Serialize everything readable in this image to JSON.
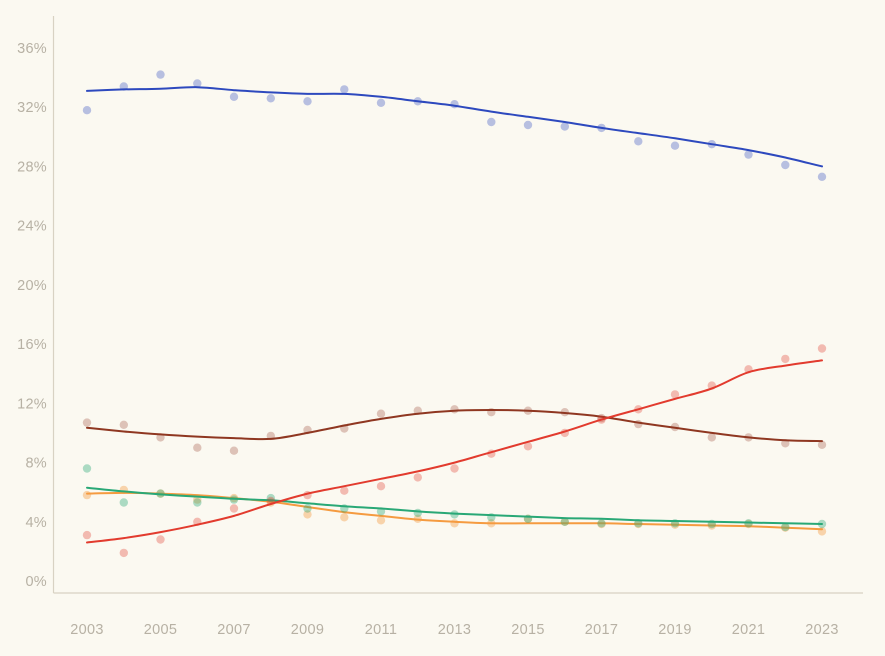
{
  "page": {
    "background_color": "#fbf9f1",
    "axis_color": "#d8d2c3",
    "tick_label_color": "#b7b1a4"
  },
  "chart_data": {
    "type": "line",
    "style": "scatter points with smoothed trend lines, one point per year",
    "title": "",
    "xlabel": "",
    "ylabel": "",
    "grid": false,
    "legend": "none",
    "x": [
      2003,
      2004,
      2005,
      2006,
      2007,
      2008,
      2009,
      2010,
      2011,
      2012,
      2013,
      2014,
      2015,
      2016,
      2017,
      2018,
      2019,
      2020,
      2021,
      2022,
      2023
    ],
    "x_tick_labels": [
      "2003",
      "2005",
      "2007",
      "2009",
      "2011",
      "2013",
      "2015",
      "2017",
      "2019",
      "2021",
      "2023"
    ],
    "y_tick_labels": [
      "0%",
      "4%",
      "8%",
      "12%",
      "16%",
      "20%",
      "24%",
      "28%",
      "32%",
      "36%"
    ],
    "y_tick_values": [
      0,
      4,
      8,
      12,
      16,
      20,
      24,
      28,
      32,
      36
    ],
    "ylim": [
      0,
      38.2
    ],
    "xlim": [
      2003,
      2023
    ],
    "series": [
      {
        "name": "dark-red",
        "line_color": "#8f3721",
        "dot_opacity": 0.28,
        "trend": [
          10.35,
          10.1,
          9.9,
          9.75,
          9.65,
          9.6,
          10.0,
          10.5,
          10.95,
          11.3,
          11.5,
          11.55,
          11.5,
          11.35,
          11.1,
          10.7,
          10.35,
          10.0,
          9.7,
          9.5,
          9.45
        ],
        "points": [
          10.7,
          10.55,
          9.7,
          9.0,
          8.8,
          9.8,
          10.2,
          10.3,
          11.3,
          11.5,
          11.6,
          11.4,
          11.5,
          11.4,
          11.0,
          10.6,
          10.4,
          9.7,
          9.7,
          9.3,
          9.2
        ]
      },
      {
        "name": "orange",
        "line_color": "#f59b40",
        "dot_opacity": 0.4,
        "trend": [
          5.9,
          5.95,
          5.9,
          5.8,
          5.6,
          5.35,
          5.0,
          4.65,
          4.4,
          4.15,
          4.0,
          3.9,
          3.9,
          3.9,
          3.9,
          3.85,
          3.8,
          3.75,
          3.7,
          3.6,
          3.5
        ],
        "points": [
          5.8,
          6.15,
          5.9,
          5.5,
          5.6,
          5.3,
          4.5,
          4.3,
          4.1,
          4.2,
          3.9,
          3.9,
          4.2,
          4.0,
          3.85,
          3.85,
          3.8,
          3.75,
          3.85,
          3.6,
          3.35
        ]
      },
      {
        "name": "green",
        "line_color": "#29a876",
        "dot_opacity": 0.38,
        "trend": [
          6.3,
          6.05,
          5.85,
          5.7,
          5.55,
          5.45,
          5.25,
          5.05,
          4.9,
          4.7,
          4.55,
          4.45,
          4.35,
          4.25,
          4.2,
          4.1,
          4.05,
          4.0,
          3.95,
          3.9,
          3.85
        ],
        "points": [
          7.6,
          5.3,
          5.9,
          5.3,
          5.5,
          5.6,
          4.9,
          4.9,
          4.7,
          4.6,
          4.5,
          4.3,
          4.2,
          4.0,
          3.9,
          3.9,
          3.9,
          3.85,
          3.9,
          3.65,
          3.85
        ]
      },
      {
        "name": "red",
        "line_color": "#e23b2e",
        "dot_opacity": 0.33,
        "trend": [
          2.6,
          2.9,
          3.3,
          3.8,
          4.4,
          5.2,
          5.9,
          6.4,
          6.9,
          7.4,
          8.0,
          8.7,
          9.4,
          10.1,
          10.9,
          11.6,
          12.3,
          13.0,
          14.1,
          14.55,
          14.9
        ],
        "points": [
          3.1,
          1.9,
          2.8,
          4.0,
          4.9,
          5.4,
          5.8,
          6.1,
          6.4,
          7.0,
          7.6,
          8.6,
          9.1,
          10.0,
          10.9,
          11.6,
          12.6,
          13.2,
          14.3,
          15.0,
          15.7
        ]
      },
      {
        "name": "blue",
        "line_color": "#2d49be",
        "dot_opacity": 0.33,
        "trend": [
          33.1,
          33.2,
          33.25,
          33.35,
          33.15,
          33.0,
          32.9,
          32.9,
          32.7,
          32.4,
          32.1,
          31.7,
          31.35,
          31.0,
          30.6,
          30.25,
          29.9,
          29.5,
          29.1,
          28.6,
          28.0
        ],
        "points": [
          31.8,
          33.4,
          34.2,
          33.6,
          32.7,
          32.6,
          32.4,
          33.2,
          32.3,
          32.4,
          32.2,
          31.0,
          30.8,
          30.7,
          30.6,
          29.7,
          29.4,
          29.5,
          28.8,
          28.1,
          27.3
        ]
      }
    ]
  }
}
